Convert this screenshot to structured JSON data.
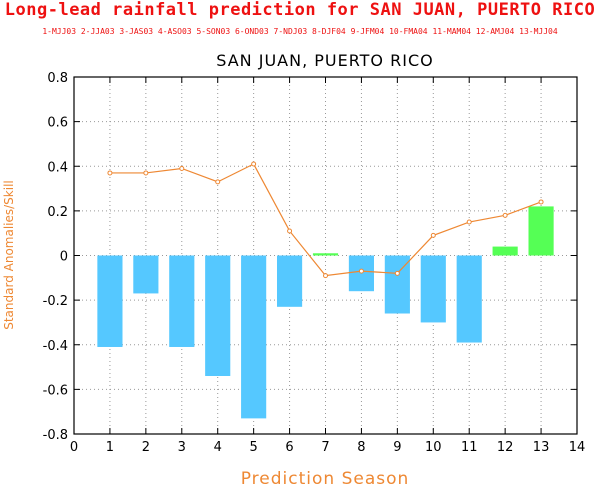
{
  "header": {
    "title": "Long-lead rainfall prediction for SAN JUAN, PUERTO RICO",
    "season_key": "1-MJJ03 2-JJA03 3-JAS03 4-ASO03 5-SON03 6-OND03 7-NDJ03 8-DJF04 9-JFM04 10-FMA04 11-MAM04 12-AMJ04 13-MJJ04"
  },
  "chart_data": {
    "type": "bar",
    "title": "SAN JUAN, PUERTO RICO",
    "xlabel": "Prediction Season",
    "ylabel": "Standard Anomalies/Skill",
    "xlim": [
      0,
      14
    ],
    "ylim": [
      -0.8,
      0.8
    ],
    "x_ticks": [
      0,
      1,
      2,
      3,
      4,
      5,
      6,
      7,
      8,
      9,
      10,
      11,
      12,
      13,
      14
    ],
    "y_ticks": [
      -0.8,
      -0.6,
      -0.4,
      -0.2,
      0,
      0.2,
      0.4,
      0.6,
      0.8
    ],
    "y_tick_labels": [
      "-0.8",
      "-0.6",
      "-0.4",
      "-0.2",
      "0",
      "0.2",
      "0.4",
      "0.6",
      "0.8"
    ],
    "grid": true,
    "x": [
      1,
      2,
      3,
      4,
      5,
      6,
      7,
      8,
      9,
      10,
      11,
      12,
      13
    ],
    "series": [
      {
        "kind": "bar",
        "values": [
          -0.41,
          -0.17,
          -0.41,
          -0.54,
          -0.73,
          -0.23,
          0.01,
          -0.16,
          -0.26,
          -0.3,
          -0.39,
          0.04,
          0.22
        ],
        "color_negative": "#55c8ff",
        "color_positive": "#55ff55"
      },
      {
        "kind": "line",
        "values": [
          0.37,
          0.37,
          0.39,
          0.33,
          0.41,
          0.11,
          -0.09,
          -0.07,
          -0.08,
          0.09,
          0.15,
          0.18,
          0.24
        ],
        "color": "#ee8833"
      }
    ]
  },
  "colors": {
    "header_red": "#ee1111",
    "axis_orange": "#ee8833",
    "axis_black": "#000000"
  }
}
